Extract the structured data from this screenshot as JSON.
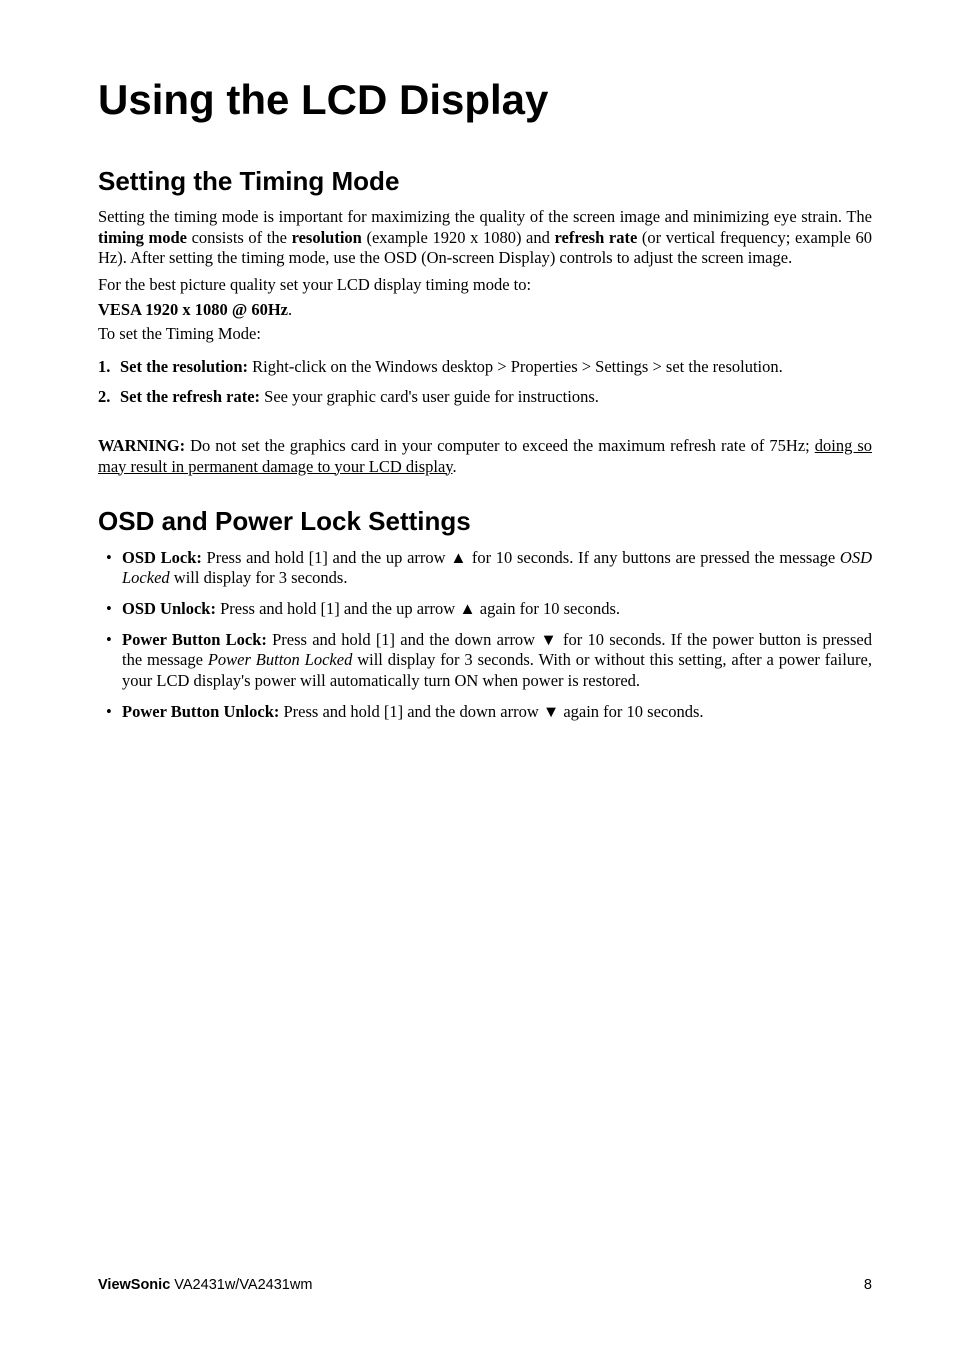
{
  "page": {
    "title": "Using the LCD Display",
    "section1": {
      "heading": "Setting the Timing Mode",
      "p1_a": "Setting the timing mode is important for maximizing the quality of the screen image and minimizing eye strain. The ",
      "p1_b": "timing mode",
      "p1_c": " consists of the ",
      "p1_d": "resolution",
      "p1_e": " (example 1920 x 1080) and ",
      "p1_f": "refresh rate",
      "p1_g": " (or vertical frequency; example 60 Hz). After setting the timing mode, use the OSD (On-screen Display) controls to adjust the screen image.",
      "p2": "For the best picture quality set your LCD display timing mode to:",
      "vesa": "VESA 1920 x 1080 @ 60Hz",
      "vesa_period": ".",
      "p3": "To set the Timing Mode:",
      "step1_num": "1.",
      "step1_b": "Set the resolution:",
      "step1_t": " Right-click on the Windows desktop > Properties > Settings > set the resolution.",
      "step2_num": "2.",
      "step2_b": " Set the refresh rate:",
      "step2_t": " See your graphic card's user guide for instructions.",
      "warn_b": "WARNING:",
      "warn_t1": " Do not set the graphics card in your computer to exceed the maximum refresh rate of 75Hz; ",
      "warn_u": "doing so may result in permanent damage to your LCD display",
      "warn_t2": "."
    },
    "section2": {
      "heading": "OSD and Power Lock Settings",
      "b1_b": "OSD Lock:",
      "b1_t1": " Press and hold [1] and the up arrow ",
      "b1_arrow": "▲",
      "b1_t2": " for 10 seconds. If any buttons are pressed the message ",
      "b1_i": "OSD Locked",
      "b1_t3": " will display for 3 seconds.",
      "b2_b": "OSD Unlock:",
      "b2_t1": " Press and hold [1] and the up arrow ",
      "b2_arrow": "▲",
      "b2_t2": " again for 10 seconds.",
      "b3_b": "Power Button Lock:",
      "b3_t1": " Press and hold [1] and the down arrow ",
      "b3_arrow": "▼",
      "b3_t2": " for 10 seconds. If the power button is pressed the message ",
      "b3_i": "Power Button Locked",
      "b3_t3": " will display for 3 seconds. With or without this setting, after a power failure, your LCD display's power will automatically turn ON when power is restored.",
      "b4_b": "Power Button Unlock:",
      "b4_t1": " Press and hold [1] and the down arrow ",
      "b4_arrow": "▼",
      "b4_t2": " again for 10 seconds."
    }
  },
  "footer": {
    "brand": "ViewSonic",
    "model": "   VA2431w/VA2431wm",
    "page_num": "8"
  },
  "bullet": "•"
}
